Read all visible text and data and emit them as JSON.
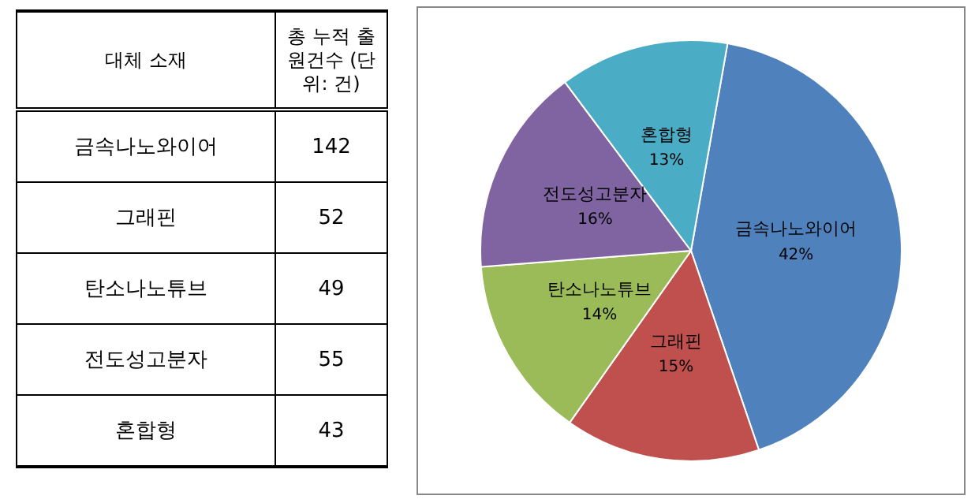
{
  "chart_data": [
    {
      "type": "other",
      "annotations": [
        "대체 소재",
        "총 누적 출원건수 (단위: 건)",
        "금속나노와이어",
        "142",
        "그래핀",
        "52",
        "탄소나노튜브",
        "49",
        "전도성고분자",
        "55",
        "혼합형",
        "43"
      ]
    },
    {
      "type": "pie",
      "categories": [
        "금속나노와이어",
        "그래핀",
        "탄소나노튜브",
        "전도성고분자",
        "혼합형"
      ],
      "values": [
        42,
        15,
        14,
        16,
        13
      ],
      "colors": [
        "#4f81bd",
        "#c0504d",
        "#9bbb59",
        "#8064a2",
        "#4bacc6"
      ],
      "value_labels": [
        "42%",
        "15%",
        "14%",
        "16%",
        "13%"
      ]
    }
  ]
}
